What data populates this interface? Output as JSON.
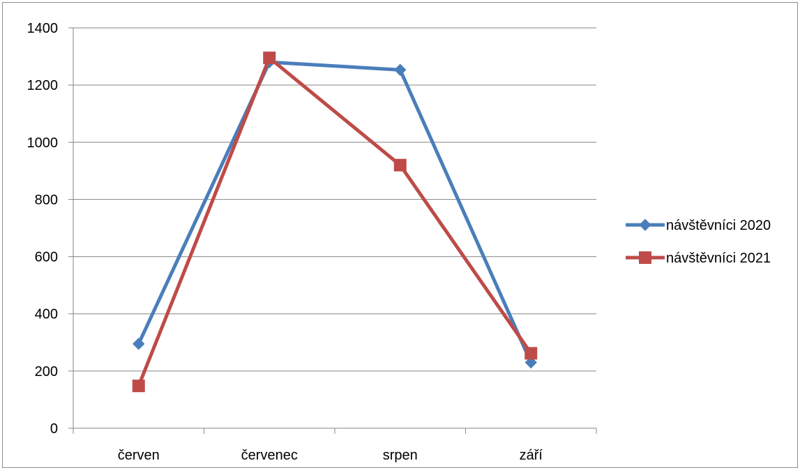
{
  "chart_data": {
    "type": "line",
    "categories": [
      "červen",
      "červenec",
      "srpen",
      "září"
    ],
    "series": [
      {
        "name": "návštěvníci 2020",
        "values": [
          295,
          1280,
          1253,
          230
        ],
        "color": "#4a7ebb",
        "marker": "diamond"
      },
      {
        "name": "návštěvníci 2021",
        "values": [
          148,
          1295,
          920,
          262
        ],
        "color": "#be4b48",
        "marker": "square"
      }
    ],
    "title": "",
    "xlabel": "",
    "ylabel": "",
    "ylim": [
      0,
      1400
    ],
    "yticks": [
      0,
      200,
      400,
      600,
      800,
      1000,
      1200,
      1400
    ],
    "grid": true,
    "legend_position": "right"
  }
}
